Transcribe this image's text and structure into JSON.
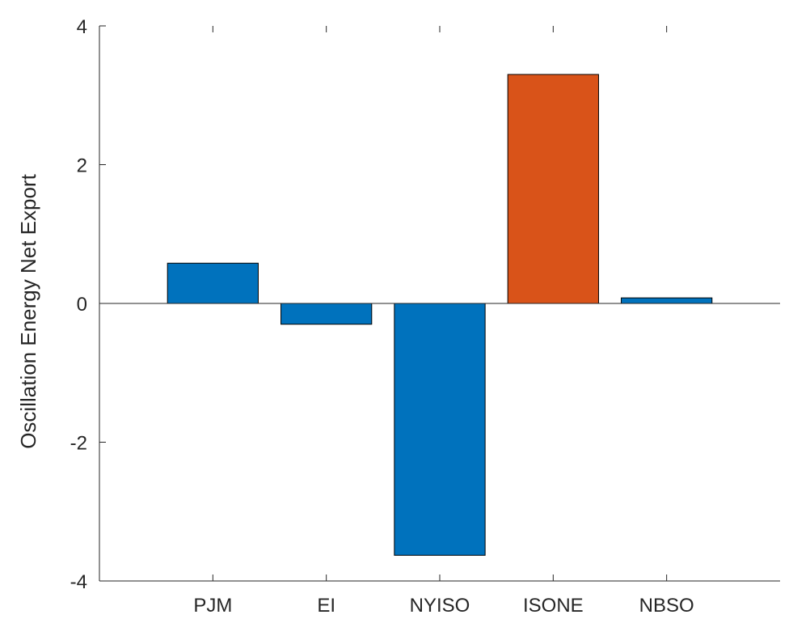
{
  "chart_data": {
    "type": "bar",
    "title": "",
    "xlabel": "",
    "ylabel": "Oscillation Energy Net Export",
    "categories": [
      "PJM",
      "EI",
      "NYISO",
      "ISONE",
      "NBSO"
    ],
    "values": [
      0.58,
      -0.3,
      -3.63,
      3.3,
      0.08
    ],
    "bar_colors": [
      "#0072BD",
      "#0072BD",
      "#0072BD",
      "#D95319",
      "#0072BD"
    ],
    "ylim": [
      -4,
      4
    ],
    "yticks": [
      -4,
      -2,
      0,
      2,
      4
    ],
    "ytick_labels": [
      "-4",
      "-2",
      "0",
      "2",
      "4"
    ],
    "grid": false,
    "zero_line": true,
    "box": false
  }
}
